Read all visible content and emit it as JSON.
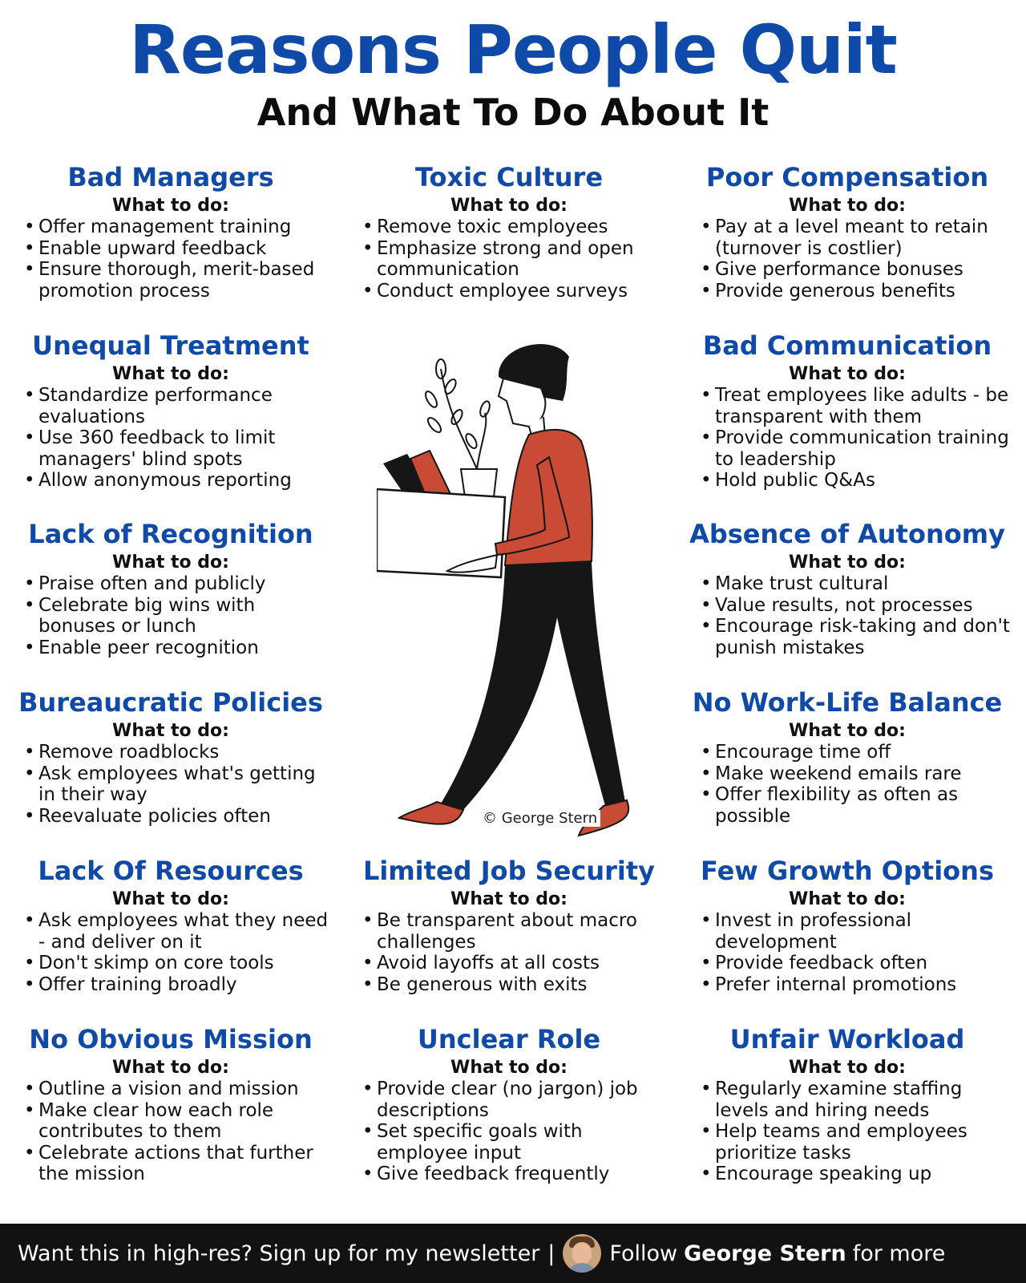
{
  "header": {
    "title": "Reasons People Quit",
    "subtitle": "And What To Do About It"
  },
  "cards": [
    {
      "title": "Bad Managers",
      "label": "What to do:",
      "items": [
        "Offer management training",
        "Enable upward feedback",
        "Ensure thorough, merit-based promotion process"
      ]
    },
    {
      "title": "Toxic Culture",
      "label": "What to do:",
      "items": [
        "Remove toxic employees",
        "Emphasize strong and open communication",
        "Conduct employee surveys"
      ]
    },
    {
      "title": "Poor Compensation",
      "label": "What to do:",
      "items": [
        "Pay at a level meant to retain (turnover is costlier)",
        "Give performance bonuses",
        "Provide generous benefits"
      ]
    },
    {
      "title": "Unequal Treatment",
      "label": "What to do:",
      "items": [
        "Standardize performance evaluations",
        "Use 360 feedback to limit managers' blind spots",
        "Allow anonymous reporting"
      ]
    },
    {
      "title": "Bad Communication",
      "label": "What to do:",
      "items": [
        "Treat employees like adults - be transparent with them",
        "Provide communication training to leadership",
        "Hold public Q&As"
      ]
    },
    {
      "title": "Lack of Recognition",
      "label": "What to do:",
      "items": [
        "Praise often and publicly",
        "Celebrate big wins with bonuses or lunch",
        "Enable peer recognition"
      ]
    },
    {
      "title": "Absence of Autonomy",
      "label": "What to do:",
      "items": [
        "Make trust cultural",
        "Value results, not processes",
        "Encourage risk-taking and don't punish mistakes"
      ]
    },
    {
      "title": "Bureaucratic Policies",
      "label": "What to do:",
      "items": [
        "Remove roadblocks",
        "Ask employees what's getting in their way",
        "Reevaluate policies often"
      ]
    },
    {
      "title": "No Work-Life Balance",
      "label": "What to do:",
      "items": [
        "Encourage time off",
        "Make weekend emails rare",
        "Offer flexibility as often as possible"
      ]
    },
    {
      "title": "Lack Of Resources",
      "label": "What to do:",
      "items": [
        "Ask employees what they need - and deliver on it",
        "Don't skimp on core tools",
        "Offer training broadly"
      ]
    },
    {
      "title": "Limited Job Security",
      "label": "What to do:",
      "items": [
        "Be transparent about macro challenges",
        "Avoid layoffs at all costs",
        "Be generous with exits"
      ]
    },
    {
      "title": "Few Growth Options",
      "label": "What to do:",
      "items": [
        "Invest in professional development",
        "Provide feedback often",
        "Prefer internal promotions"
      ]
    },
    {
      "title": "No Obvious Mission",
      "label": "What to do:",
      "items": [
        "Outline a vision and mission",
        "Make clear how each role contributes to them",
        "Celebrate actions that further the mission"
      ]
    },
    {
      "title": "Unclear Role",
      "label": "What to do:",
      "items": [
        "Provide clear (no jargon) job descriptions",
        "Set specific goals with employee input",
        "Give feedback frequently"
      ]
    },
    {
      "title": "Unfair Workload",
      "label": "What to do:",
      "items": [
        "Regularly examine staffing levels and hiring needs",
        "Help teams and employees prioritize tasks",
        "Encourage speaking up"
      ]
    }
  ],
  "illustration": {
    "credit": "© George Stern",
    "colors": {
      "shirt": "#c94a35",
      "pants": "#161616",
      "hair": "#161616",
      "shoes": "#c94a35"
    }
  },
  "footer": {
    "cta": "Want this in high-res? Sign up for my newsletter",
    "separator": "|",
    "follow": "Follow",
    "name": "George Stern",
    "suffix": "for more"
  },
  "colors": {
    "accent": "#0f4aa8",
    "footer_bg": "#121212"
  }
}
